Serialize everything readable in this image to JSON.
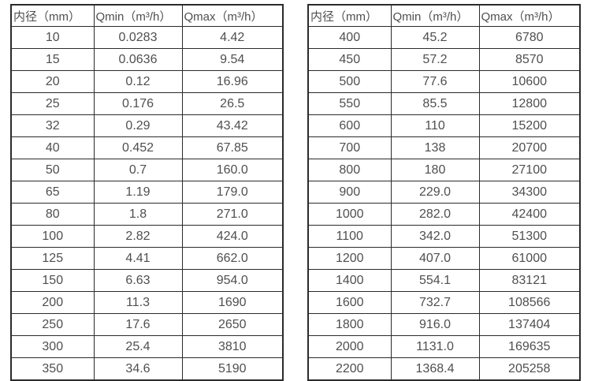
{
  "columns": [
    "内径（mm）",
    "Qmin（m³/h）",
    "Qmax（m³/h）"
  ],
  "tables": [
    {
      "name": "small-diameter-table",
      "rows": [
        [
          "10",
          "0.0283",
          "4.42"
        ],
        [
          "15",
          "0.0636",
          "9.54"
        ],
        [
          "20",
          "0.12",
          "16.96"
        ],
        [
          "25",
          "0.176",
          "26.5"
        ],
        [
          "32",
          "0.29",
          "43.42"
        ],
        [
          "40",
          "0.452",
          "67.85"
        ],
        [
          "50",
          "0.7",
          "160.0"
        ],
        [
          "65",
          "1.19",
          "179.0"
        ],
        [
          "80",
          "1.8",
          "271.0"
        ],
        [
          "100",
          "2.82",
          "424.0"
        ],
        [
          "125",
          "4.41",
          "662.0"
        ],
        [
          "150",
          "6.63",
          "954.0"
        ],
        [
          "200",
          "11.3",
          "1690"
        ],
        [
          "250",
          "17.6",
          "2650"
        ],
        [
          "300",
          "25.4",
          "3810"
        ],
        [
          "350",
          "34.6",
          "5190"
        ]
      ]
    },
    {
      "name": "large-diameter-table",
      "rows": [
        [
          "400",
          "45.2",
          "6780"
        ],
        [
          "450",
          "57.2",
          "8570"
        ],
        [
          "500",
          "77.6",
          "10600"
        ],
        [
          "550",
          "85.5",
          "12800"
        ],
        [
          "600",
          "110",
          "15200"
        ],
        [
          "700",
          "138",
          "20700"
        ],
        [
          "800",
          "180",
          "27100"
        ],
        [
          "900",
          "229.0",
          "34300"
        ],
        [
          "1000",
          "282.0",
          "42400"
        ],
        [
          "1100",
          "342.0",
          "51300"
        ],
        [
          "1200",
          "407.0",
          "61000"
        ],
        [
          "1400",
          "554.1",
          "83121"
        ],
        [
          "1600",
          "732.7",
          "108566"
        ],
        [
          "1800",
          "916.0",
          "137404"
        ],
        [
          "2000",
          "1131.0",
          "169635"
        ],
        [
          "2200",
          "1368.4",
          "205258"
        ]
      ]
    }
  ],
  "colors": {
    "text": "#4f4f4f",
    "border": "#2b2b2b",
    "background": "#ffffff"
  }
}
